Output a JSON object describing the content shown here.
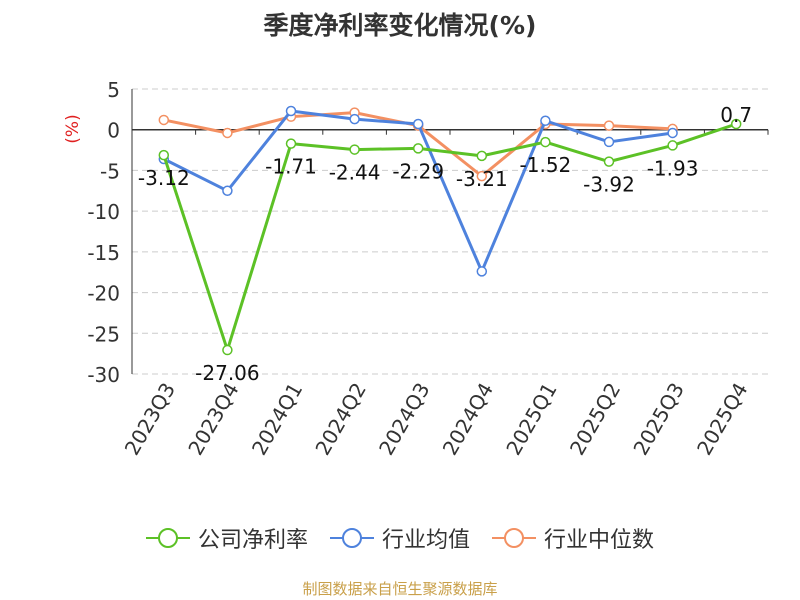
{
  "source": "制图数据来自恒生聚源数据库",
  "chart_data": {
    "type": "line",
    "title": "季度净利率变化情况(%)",
    "ylabel": "(%)",
    "xlabel": "",
    "categories": [
      "2023Q3",
      "2023Q4",
      "2024Q1",
      "2024Q2",
      "2024Q3",
      "2024Q4",
      "2025Q1",
      "2025Q2",
      "2025Q3",
      "2025Q4"
    ],
    "yticks": [
      5,
      0,
      -5,
      -10,
      -15,
      -20,
      -25,
      -30
    ],
    "ylim": [
      -30,
      5
    ],
    "grid": true,
    "legend_position": "bottom",
    "series": [
      {
        "name": "公司净利率",
        "color": "#5cc126",
        "values": [
          -3.12,
          -27.06,
          -1.71,
          -2.44,
          -2.29,
          -3.21,
          -1.52,
          -3.92,
          -1.93,
          0.7
        ],
        "labels": [
          "-3.12",
          "-27.06",
          "-1.71",
          "-2.44",
          "-2.29",
          "-3.21",
          "-1.52",
          "-3.92",
          "-1.93",
          "0.7"
        ]
      },
      {
        "name": "行业均值",
        "color": "#4e82dd",
        "values": [
          -3.6,
          -7.5,
          2.3,
          1.3,
          0.7,
          -17.4,
          1.1,
          -1.5,
          -0.4,
          null
        ]
      },
      {
        "name": "行业中位数",
        "color": "#f39062",
        "values": [
          1.2,
          -0.4,
          1.6,
          2.1,
          0.5,
          -5.7,
          0.7,
          0.5,
          0.1,
          null
        ]
      }
    ]
  }
}
